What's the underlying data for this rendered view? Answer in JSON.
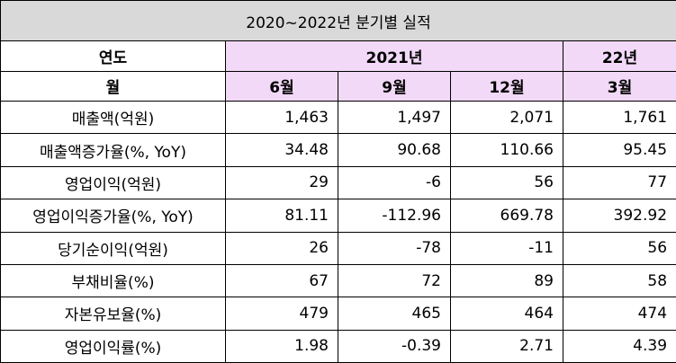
{
  "title": "2020~2022년  분기별  실적",
  "header": {
    "year_label": "연도",
    "year_2021": "2021년",
    "year_22": "22년",
    "month_label": "월",
    "months": [
      "6월",
      "9월",
      "12월",
      "3월"
    ]
  },
  "rows": [
    {
      "label": "매출액(억원)",
      "values": [
        "1,463",
        "1,497",
        "2,071",
        "1,761"
      ]
    },
    {
      "label": "매출액증가율(%, YoY)",
      "values": [
        "34.48",
        "90.68",
        "110.66",
        "95.45"
      ]
    },
    {
      "label": "영업이익(억원)",
      "values": [
        "29",
        "-6",
        "56",
        "77"
      ]
    },
    {
      "label": "영업이익증가율(%, YoY)",
      "values": [
        "81.11",
        "-112.96",
        "669.78",
        "392.92"
      ]
    },
    {
      "label": "당기순이익(억원)",
      "values": [
        "26",
        "-78",
        "-11",
        "56"
      ]
    },
    {
      "label": "부채비율(%)",
      "values": [
        "67",
        "72",
        "89",
        "58"
      ]
    },
    {
      "label": "자본유보율(%)",
      "values": [
        "479",
        "465",
        "464",
        "474"
      ]
    },
    {
      "label": "영업이익률(%)",
      "values": [
        "1.98",
        "-0.39",
        "2.71",
        "4.39"
      ]
    }
  ],
  "colors": {
    "positive_change": "#e0403a",
    "negative_change": "#3b7fc4",
    "header_highlight": "#f2d9f7",
    "title_background": "#d9d9d9"
  }
}
